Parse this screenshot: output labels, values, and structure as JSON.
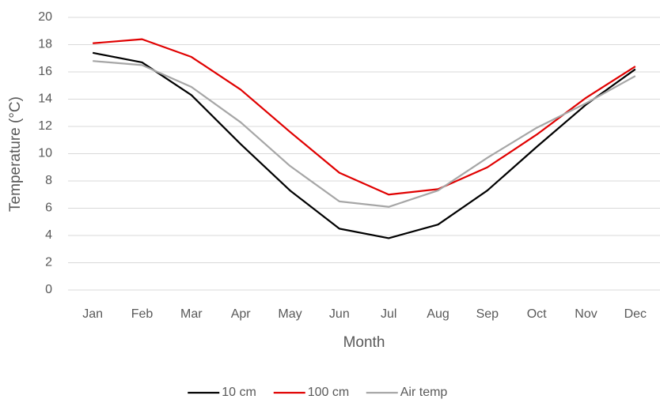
{
  "chart_data": {
    "type": "line",
    "x_label": "Month",
    "y_label": "Temperature (°C)",
    "categories": [
      "Jan",
      "Feb",
      "Mar",
      "Apr",
      "May",
      "Jun",
      "Jul",
      "Aug",
      "Sep",
      "Oct",
      "Nov",
      "Dec"
    ],
    "series": [
      {
        "name": "10 cm",
        "color": "#000000",
        "values": [
          17.4,
          16.7,
          14.3,
          10.7,
          7.3,
          4.5,
          3.8,
          4.8,
          7.3,
          10.5,
          13.6,
          16.2
        ]
      },
      {
        "name": "100 cm",
        "color": "#e00000",
        "values": [
          18.1,
          18.4,
          17.1,
          14.7,
          11.6,
          8.6,
          7.0,
          7.4,
          9.0,
          11.4,
          14.1,
          16.4
        ]
      },
      {
        "name": "Air temp",
        "color": "#a6a6a6",
        "values": [
          16.8,
          16.5,
          14.9,
          12.3,
          9.1,
          6.5,
          6.1,
          7.3,
          9.7,
          11.9,
          13.7,
          15.7
        ]
      }
    ],
    "ylim": [
      0,
      20
    ],
    "yticks": [
      0,
      2,
      4,
      6,
      8,
      10,
      12,
      14,
      16,
      18,
      20
    ],
    "grid": true,
    "legend": "bottom"
  }
}
